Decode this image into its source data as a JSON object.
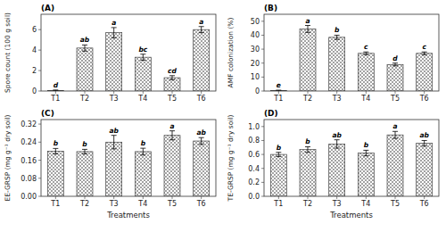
{
  "chart_data": [
    {
      "type": "bar",
      "title": "(A)",
      "categories": [
        "T1",
        "T2",
        "T3",
        "T4",
        "T5",
        "T6"
      ],
      "values": [
        0.05,
        4.2,
        5.7,
        3.3,
        1.3,
        6.0
      ],
      "errors": [
        0.05,
        0.3,
        0.5,
        0.3,
        0.2,
        0.3
      ],
      "annotations": [
        "d",
        "ab",
        "a",
        "bc",
        "cd",
        "a"
      ],
      "ylabel": "Spore count (100 g soil)",
      "ylim": [
        0,
        7.5
      ],
      "yticks": [
        0,
        2,
        4,
        6
      ],
      "color": "white",
      "grid": false
    },
    {
      "type": "bar",
      "title": "(B)",
      "categories": [
        "T1",
        "T2",
        "T3",
        "T4",
        "T5",
        "T6"
      ],
      "values": [
        0.3,
        44.5,
        38.5,
        27.0,
        19.0,
        27.0
      ],
      "errors": [
        0.3,
        2.5,
        1.5,
        1.0,
        1.0,
        1.0
      ],
      "annotations": [
        "e",
        "a",
        "b",
        "c",
        "d",
        "c"
      ],
      "ylabel": "AMF colonization (%)",
      "ylim": [
        0,
        55
      ],
      "yticks": [
        0,
        10,
        20,
        30,
        40,
        50
      ],
      "color": "white",
      "grid": false
    },
    {
      "type": "bar",
      "title": "(C)",
      "categories": [
        "T1",
        "T2",
        "T3",
        "T4",
        "T5",
        "T6"
      ],
      "values": [
        0.2,
        0.198,
        0.24,
        0.198,
        0.27,
        0.245
      ],
      "errors": [
        0.012,
        0.01,
        0.03,
        0.015,
        0.02,
        0.015
      ],
      "annotations": [
        "b",
        "b",
        "ab",
        "b",
        "a",
        "ab"
      ],
      "xlabel": "Treatments",
      "ylabel": "EE-GRSP (mg g⁻¹ dry soil)",
      "ylim": [
        0,
        0.34
      ],
      "yticks": [
        {
          "value": 0,
          "label": "0.00"
        },
        0.08,
        0.16,
        0.24,
        0.32
      ],
      "color": "white",
      "grid": false
    },
    {
      "type": "bar",
      "title": "(D)",
      "categories": [
        "T1",
        "T2",
        "T3",
        "T4",
        "T5",
        "T6"
      ],
      "values": [
        0.6,
        0.67,
        0.75,
        0.62,
        0.88,
        0.76
      ],
      "errors": [
        0.03,
        0.04,
        0.06,
        0.04,
        0.05,
        0.04
      ],
      "annotations": [
        "b",
        "b",
        "ab",
        "b",
        "a",
        "ab"
      ],
      "xlabel": "Treatments",
      "ylabel": "TE-GRSP (mg g⁻¹ dry soil)",
      "ylim": [
        0,
        1.1
      ],
      "yticks": [
        {
          "value": 0,
          "label": "0.0"
        },
        0.2,
        0.4,
        0.6,
        0.8,
        {
          "value": 1.0,
          "label": "1.0"
        }
      ],
      "color": "white",
      "grid": false
    }
  ]
}
